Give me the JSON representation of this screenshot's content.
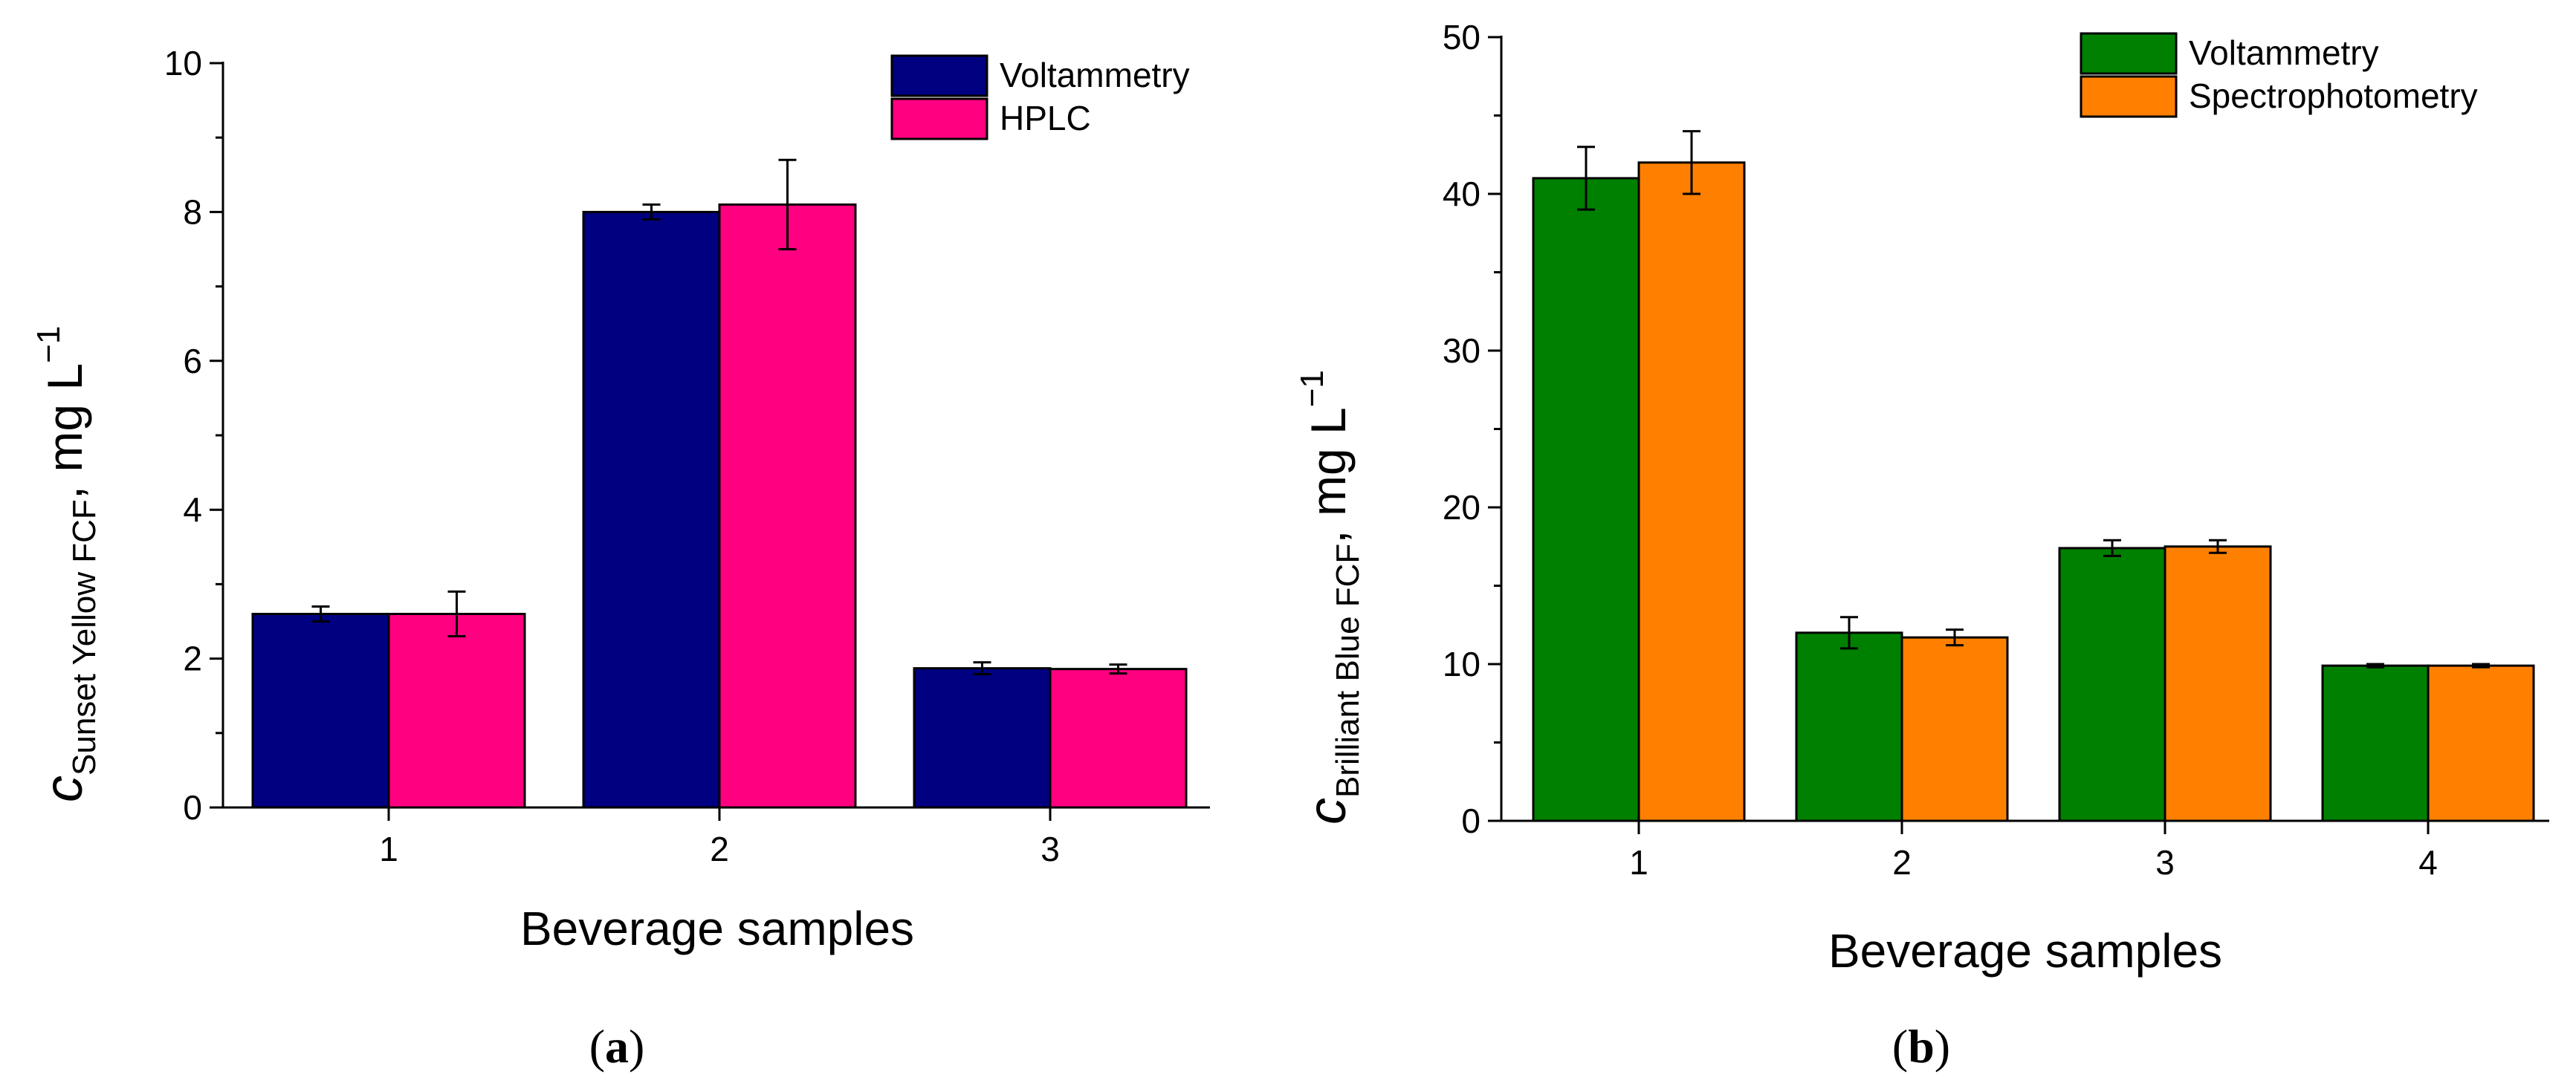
{
  "chart_data": [
    {
      "type": "bar",
      "panel_label_open": "(",
      "panel_letter": "a",
      "panel_label_close": ")",
      "title": "",
      "xlabel": "Beverage samples",
      "ylabel": {
        "symbol": "c",
        "subscript": "Sunset Yellow FCF",
        "unit": ", mg L",
        "superscript": "−1"
      },
      "categories": [
        "1",
        "2",
        "3"
      ],
      "ylim": [
        0,
        10
      ],
      "yticks": [
        "0",
        "2",
        "4",
        "6",
        "8",
        "10"
      ],
      "legend_position": "top-right",
      "series": [
        {
          "name": "Voltammetry",
          "color": "#000080",
          "values": [
            2.6,
            8.0,
            1.87
          ],
          "errors": [
            0.1,
            0.1,
            0.08
          ]
        },
        {
          "name": "HPLC",
          "color": "#ff0080",
          "values": [
            2.6,
            8.1,
            1.86
          ],
          "errors": [
            0.3,
            0.6,
            0.06
          ]
        }
      ]
    },
    {
      "type": "bar",
      "panel_label_open": "(",
      "panel_letter": "b",
      "panel_label_close": ")",
      "title": "",
      "xlabel": "Beverage samples",
      "ylabel": {
        "symbol": "c",
        "subscript": "Brilliant Blue FCF",
        "unit": ", mg L",
        "superscript": "−1"
      },
      "categories": [
        "1",
        "2",
        "3",
        "4"
      ],
      "ylim": [
        0,
        50
      ],
      "yticks": [
        "0",
        "10",
        "20",
        "30",
        "40",
        "50"
      ],
      "legend_position": "top-right",
      "series": [
        {
          "name": "Voltammetry",
          "color": "#008000",
          "values": [
            41,
            12,
            17.4,
            9.9
          ],
          "errors": [
            2.0,
            1.0,
            0.5,
            0.1
          ]
        },
        {
          "name": "Spectrophotometry",
          "color": "#ff8000",
          "values": [
            42,
            11.7,
            17.5,
            9.9
          ],
          "errors": [
            2.0,
            0.5,
            0.4,
            0.1
          ]
        }
      ]
    }
  ]
}
